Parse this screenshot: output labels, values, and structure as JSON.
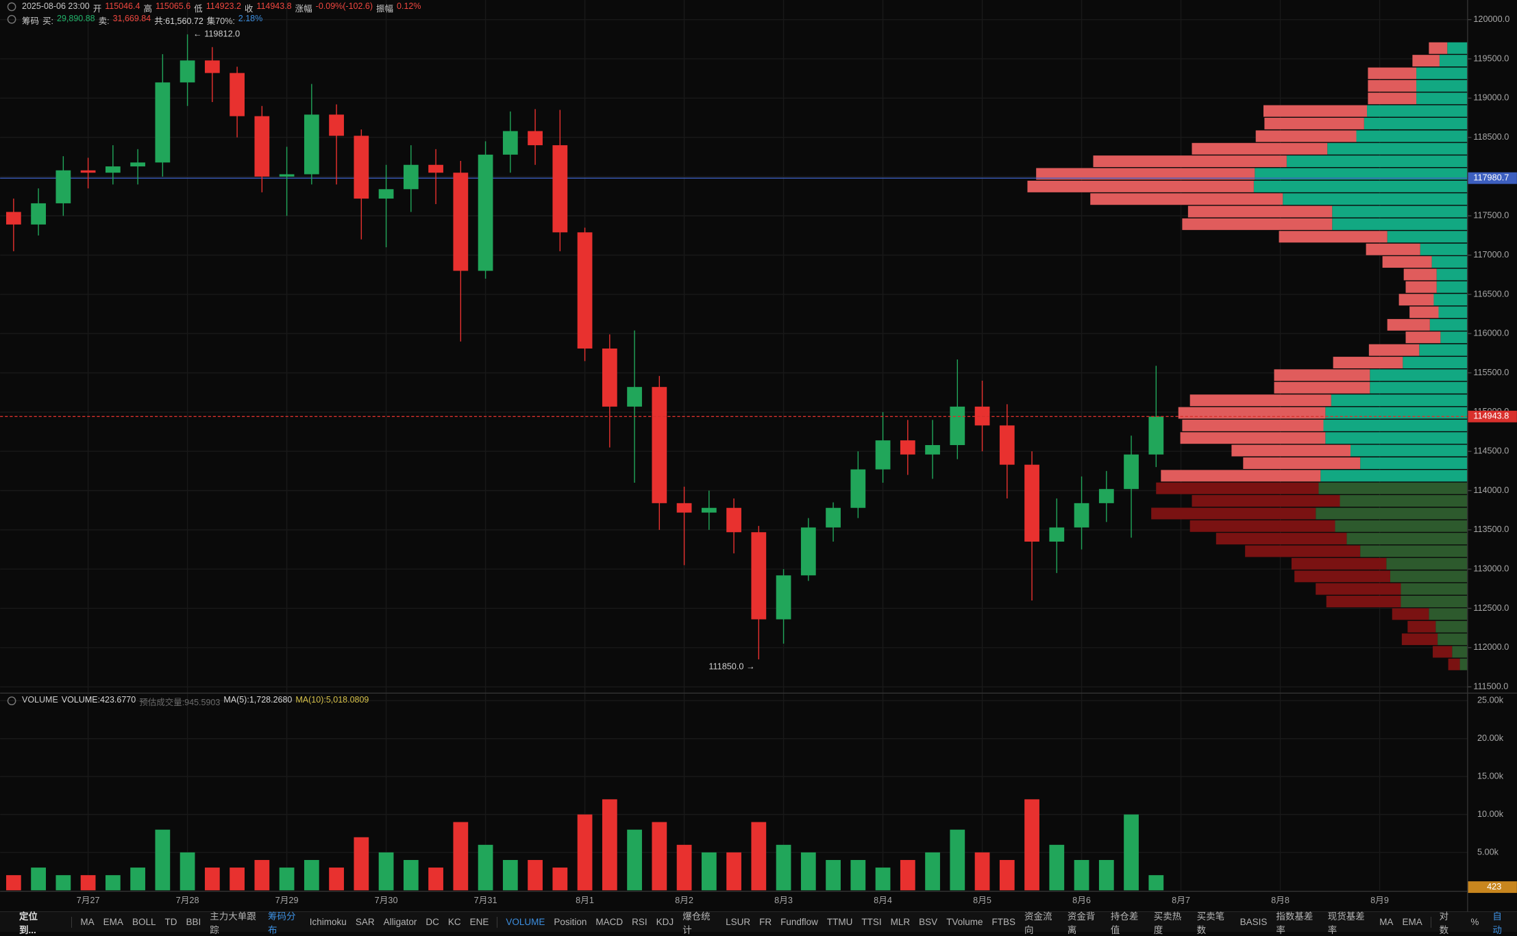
{
  "header": {
    "line1": [
      {
        "text": "2025-08-06 23:00",
        "color": "#c9c9c9"
      },
      {
        "text": "开",
        "color": "#c9c9c9"
      },
      {
        "text": "115046.4",
        "color": "#f0473f"
      },
      {
        "text": "高",
        "color": "#c9c9c9"
      },
      {
        "text": "115065.6",
        "color": "#f0473f"
      },
      {
        "text": "低",
        "color": "#c9c9c9"
      },
      {
        "text": "114923.2",
        "color": "#f0473f"
      },
      {
        "text": "收",
        "color": "#c9c9c9"
      },
      {
        "text": "114943.8",
        "color": "#f0473f"
      },
      {
        "text": "涨幅",
        "color": "#c9c9c9"
      },
      {
        "text": "-0.09%(-102.6)",
        "color": "#f0473f"
      },
      {
        "text": "振幅",
        "color": "#c9c9c9"
      },
      {
        "text": "0.12%",
        "color": "#f0473f"
      }
    ],
    "line2": [
      {
        "text": "筹码",
        "color": "#c9c9c9"
      },
      {
        "text": "买:",
        "color": "#c9c9c9"
      },
      {
        "text": "29,890.88",
        "color": "#21b36a"
      },
      {
        "text": "卖:",
        "color": "#c9c9c9"
      },
      {
        "text": "31,669.84",
        "color": "#f0473f"
      },
      {
        "text": "共:61,560.72",
        "color": "#d8d8d8"
      },
      {
        "text": "集70%:",
        "color": "#c9c9c9"
      },
      {
        "text": "2.18%",
        "color": "#3d8fe0"
      }
    ],
    "volume": [
      {
        "text": "VOLUME",
        "color": "#c9c9c9"
      },
      {
        "text": "VOLUME:423.6770",
        "color": "#d8d8d8"
      },
      {
        "text": "预估成交量:945.5903",
        "color": "#6b6b6b"
      },
      {
        "text": "MA(5):1,728.2680",
        "color": "#d8d8d8"
      },
      {
        "text": "MA(10):5,018.0809",
        "color": "#d6c14a"
      }
    ]
  },
  "chart_data": {
    "type": "candlestick",
    "x": [
      -0.75,
      -0.5,
      -0.25,
      0,
      0.25,
      0.5,
      0.75,
      1,
      1.25,
      1.5,
      1.75,
      2,
      2.25,
      2.5,
      2.75,
      3,
      3.25,
      3.5,
      3.75,
      4,
      4.25,
      4.5,
      4.75,
      5,
      5.25,
      5.5,
      5.75,
      6,
      6.25,
      6.5,
      6.75,
      7,
      7.25,
      7.5,
      7.75,
      8,
      8.25,
      8.5,
      8.75,
      9,
      9.25,
      9.5,
      9.75,
      10,
      10.25,
      10.5,
      10.75
    ],
    "open": [
      117550,
      117390,
      117660,
      118080,
      118050,
      118130,
      118180,
      119200,
      119480,
      119320,
      118770,
      118000,
      118030,
      118790,
      118520,
      117720,
      117840,
      118150,
      118050,
      116800,
      118280,
      118580,
      118400,
      117290,
      115810,
      115070,
      115320,
      113840,
      113720,
      113780,
      113470,
      112360,
      112920,
      113530,
      113780,
      114270,
      114640,
      114460,
      114580,
      115070,
      114830,
      114330,
      113350,
      113530,
      113840,
      114020,
      114460
    ],
    "high": [
      117720,
      117850,
      118260,
      118240,
      118400,
      118350,
      119560,
      119812,
      119650,
      119400,
      118900,
      118380,
      119180,
      118920,
      118600,
      118150,
      118400,
      118350,
      118200,
      118450,
      118830,
      118860,
      118850,
      117350,
      115990,
      116040,
      115460,
      114050,
      114000,
      113900,
      113550,
      113000,
      113650,
      113850,
      114500,
      115000,
      114900,
      114900,
      115670,
      115400,
      115100,
      114500,
      113900,
      114180,
      114250,
      114700,
      115590
    ],
    "low": [
      117050,
      117250,
      117500,
      117850,
      117900,
      117900,
      118000,
      118900,
      118950,
      118500,
      117800,
      117500,
      117900,
      117900,
      117200,
      117100,
      117550,
      117650,
      115900,
      116700,
      118050,
      118150,
      117050,
      115650,
      114550,
      114100,
      113500,
      113050,
      113500,
      113200,
      111850,
      112050,
      112850,
      113350,
      113650,
      114100,
      114200,
      114150,
      114400,
      114500,
      113900,
      112600,
      112950,
      113250,
      113600,
      113400,
      114300
    ],
    "close": [
      117390,
      117660,
      118080,
      118050,
      118130,
      118180,
      119200,
      119480,
      119320,
      118770,
      118000,
      118030,
      118790,
      118520,
      117720,
      117840,
      118150,
      118050,
      116800,
      118280,
      118580,
      118400,
      117290,
      115810,
      115070,
      115320,
      113840,
      113720,
      113780,
      113470,
      112360,
      112920,
      113530,
      113780,
      114270,
      114640,
      114460,
      114580,
      115070,
      114830,
      114330,
      113350,
      113530,
      113840,
      114020,
      114460,
      114943.8
    ],
    "up_color": "#21a65a",
    "down_color": "#e8312f",
    "xlim": [
      -0.886,
      13.885
    ],
    "xticks": [
      {
        "value": 0,
        "label": "7月27"
      },
      {
        "value": 1,
        "label": "7月28"
      },
      {
        "value": 2,
        "label": "7月29"
      },
      {
        "value": 3,
        "label": "7月30"
      },
      {
        "value": 4,
        "label": "7月31"
      },
      {
        "value": 5,
        "label": "8月1"
      },
      {
        "value": 6,
        "label": "8月2"
      },
      {
        "value": 7,
        "label": "8月3"
      },
      {
        "value": 8,
        "label": "8月4"
      },
      {
        "value": 9,
        "label": "8月5"
      },
      {
        "value": 10,
        "label": "8月6"
      },
      {
        "value": 11,
        "label": "8月7"
      },
      {
        "value": 12,
        "label": "8月8"
      },
      {
        "value": 13,
        "label": "8月9"
      }
    ],
    "ylim": [
      111420,
      120250
    ],
    "yticks": [
      {
        "value": 111500,
        "label": "111500.0"
      },
      {
        "value": 112000,
        "label": "112000.0"
      },
      {
        "value": 112500,
        "label": "112500.0"
      },
      {
        "value": 113000,
        "label": "113000.0"
      },
      {
        "value": 113500,
        "label": "113500.0"
      },
      {
        "value": 114000,
        "label": "114000.0"
      },
      {
        "value": 114500,
        "label": "114500.0"
      },
      {
        "value": 115000,
        "label": "115000.0"
      },
      {
        "value": 115500,
        "label": "115500.0"
      },
      {
        "value": 116000,
        "label": "116000.0"
      },
      {
        "value": 116500,
        "label": "116500.0"
      },
      {
        "value": 117000,
        "label": "117000.0"
      },
      {
        "value": 117500,
        "label": "117500.0"
      },
      {
        "value": 118000,
        "label": "118000.0"
      },
      {
        "value": 118500,
        "label": "118500.0"
      },
      {
        "value": 119000,
        "label": "119000.0"
      },
      {
        "value": 119500,
        "label": "119500.0"
      },
      {
        "value": 120000,
        "label": "120000.0"
      }
    ],
    "grid": true,
    "annotations": [
      {
        "text": "← 119812.0"
      },
      {
        "text": "111850.0 →"
      }
    ],
    "price_lines": [
      {
        "value": 117980.7,
        "color": "#3d5fc0"
      }
    ],
    "last_color": "#d9302c",
    "volume": {
      "values": [
        2000,
        3000,
        2000,
        2000,
        2000,
        3000,
        8000,
        5000,
        3000,
        3000,
        4000,
        3000,
        4000,
        3000,
        7000,
        5000,
        4000,
        3000,
        9000,
        6000,
        4000,
        4000,
        3000,
        10000,
        12000,
        8000,
        9000,
        6000,
        5000,
        5000,
        9000,
        6000,
        5000,
        4000,
        4000,
        3000,
        4000,
        5000,
        8000,
        5000,
        4000,
        12000,
        6000,
        4000,
        4000,
        10000,
        2000
      ],
      "ylim": [
        0,
        26000
      ],
      "yticks": [
        {
          "value": 5000,
          "label": "5.00k"
        },
        {
          "value": 10000,
          "label": "10.00k"
        },
        {
          "value": 15000,
          "label": "15.00k"
        },
        {
          "value": 20000,
          "label": "20.00k"
        },
        {
          "value": 25000,
          "label": "25.00k"
        }
      ],
      "current": {
        "value": 423.677,
        "label": "423",
        "color": "#c8861e"
      }
    },
    "profile": {
      "levels": [
        119637,
        119477,
        119316,
        119156,
        118996,
        118836,
        118676,
        118515,
        118355,
        118195,
        118035,
        117874,
        117714,
        117554,
        117394,
        117234,
        117073,
        116913,
        116753,
        116593,
        116432,
        116272,
        116112,
        115952,
        115791,
        115631,
        115471,
        115311,
        115150,
        114990,
        114830,
        114670,
        114510,
        114349,
        114189,
        114029,
        113869,
        113708,
        113548,
        113388,
        113228,
        113068,
        112907,
        112747,
        112587,
        112427,
        112266,
        112106,
        111946,
        111786
      ],
      "sell": [
        19,
        28,
        50,
        50,
        50,
        107,
        103,
        104,
        140,
        200,
        226,
        234,
        199,
        149,
        155,
        112,
        56,
        51,
        34,
        32,
        36,
        30,
        44,
        36,
        52,
        72,
        99,
        99,
        146,
        152,
        146,
        150,
        123,
        121,
        165,
        168,
        153,
        170,
        150,
        135,
        119,
        98,
        99,
        88,
        77,
        38,
        29,
        37,
        20,
        12
      ],
      "buy": [
        21,
        29,
        53,
        53,
        53,
        104,
        107,
        115,
        145,
        187,
        220,
        221,
        191,
        140,
        140,
        83,
        49,
        37,
        32,
        32,
        35,
        30,
        39,
        28,
        50,
        67,
        101,
        101,
        141,
        147,
        149,
        147,
        121,
        111,
        152,
        154,
        132,
        157,
        137,
        125,
        111,
        84,
        80,
        69,
        69,
        40,
        33,
        31,
        16,
        8
      ],
      "colors": {
        "buy": "#12a882",
        "sell": "#e05c5c",
        "buy_dark": "#2d5a2d",
        "sell_dark": "#7a1212"
      }
    }
  },
  "toolbar": {
    "locate": "定位到...",
    "main": [
      {
        "text": "MA"
      },
      {
        "text": "EMA"
      },
      {
        "text": "BOLL"
      },
      {
        "text": "TD"
      },
      {
        "text": "BBI"
      },
      {
        "text": "主力大单跟踪"
      },
      {
        "text": "筹码分布",
        "active": true
      },
      {
        "text": "Ichimoku"
      },
      {
        "text": "SAR"
      },
      {
        "text": "Alligator"
      },
      {
        "text": "DC"
      },
      {
        "text": "KC"
      },
      {
        "text": "ENE"
      }
    ],
    "sub": [
      {
        "text": "VOLUME",
        "active": true
      },
      {
        "text": "Position"
      },
      {
        "text": "MACD"
      },
      {
        "text": "RSI"
      },
      {
        "text": "KDJ"
      },
      {
        "text": "爆仓统计"
      },
      {
        "text": "LSUR"
      },
      {
        "text": "FR"
      },
      {
        "text": "Fundflow"
      },
      {
        "text": "TTMU"
      },
      {
        "text": "TTSI"
      },
      {
        "text": "MLR"
      },
      {
        "text": "BSV"
      },
      {
        "text": "TVolume"
      },
      {
        "text": "FTBS"
      },
      {
        "text": "资金流向"
      },
      {
        "text": "资金背离"
      },
      {
        "text": "持仓差值"
      },
      {
        "text": "买卖热度"
      },
      {
        "text": "买卖笔数"
      },
      {
        "text": "BASIS"
      },
      {
        "text": "指数基差率"
      },
      {
        "text": "现货基差率"
      },
      {
        "text": "MA"
      },
      {
        "text": "EMA"
      }
    ],
    "right": [
      {
        "text": "对数"
      },
      {
        "text": "%"
      },
      {
        "text": "自动",
        "active": true
      }
    ]
  }
}
